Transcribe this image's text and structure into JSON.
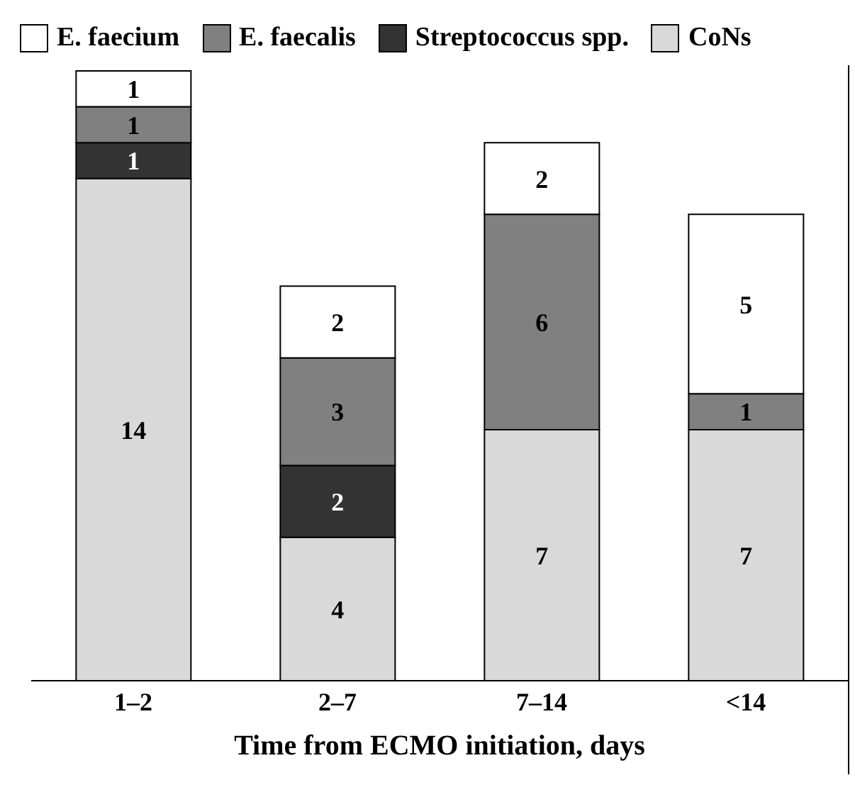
{
  "chart_data": {
    "type": "bar",
    "stacked": true,
    "xlabel": "Time from ECMO initiation, days",
    "categories": [
      "1–2",
      "2–7",
      "7–14",
      "<14"
    ],
    "series": [
      {
        "name": "CoNs",
        "color": "#d9d9d9",
        "values": [
          14,
          4,
          7,
          7
        ]
      },
      {
        "name": "Streptococcus spp.",
        "color": "#333333",
        "values": [
          1,
          2,
          null,
          null
        ]
      },
      {
        "name": "E. faecalis",
        "color": "#808080",
        "values": [
          1,
          3,
          6,
          1
        ]
      },
      {
        "name": "E. faecium",
        "color": "#ffffff",
        "values": [
          1,
          2,
          2,
          5
        ]
      }
    ],
    "data_labels": true,
    "legend": "top",
    "grid": false
  }
}
